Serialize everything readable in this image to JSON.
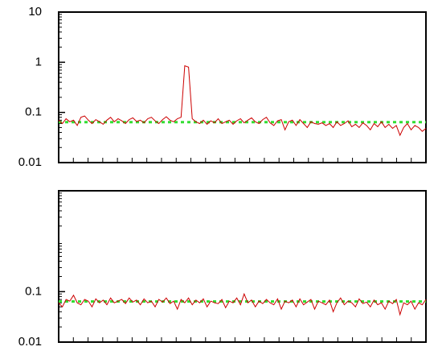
{
  "chart_data": [
    {
      "type": "line",
      "log": true,
      "ylim": [
        0.01,
        10
      ],
      "yticks": [
        0.01,
        0.1,
        1,
        10
      ],
      "series": [
        {
          "color": "#cc0000",
          "values": [
            0.07,
            0.06,
            0.075,
            0.065,
            0.07,
            0.055,
            0.08,
            0.085,
            0.07,
            0.06,
            0.072,
            0.065,
            0.058,
            0.07,
            0.08,
            0.065,
            0.075,
            0.068,
            0.06,
            0.072,
            0.078,
            0.066,
            0.07,
            0.062,
            0.075,
            0.08,
            0.068,
            0.06,
            0.072,
            0.082,
            0.07,
            0.065,
            0.075,
            0.08,
            0.85,
            0.8,
            0.075,
            0.065,
            0.06,
            0.07,
            0.058,
            0.068,
            0.062,
            0.075,
            0.06,
            0.065,
            0.07,
            0.058,
            0.068,
            0.075,
            0.062,
            0.07,
            0.078,
            0.065,
            0.06,
            0.072,
            0.08,
            0.062,
            0.055,
            0.068,
            0.072,
            0.045,
            0.065,
            0.07,
            0.055,
            0.072,
            0.06,
            0.05,
            0.065,
            0.06,
            0.058,
            0.062,
            0.055,
            0.06,
            0.05,
            0.065,
            0.055,
            0.06,
            0.068,
            0.052,
            0.058,
            0.05,
            0.062,
            0.055,
            0.045,
            0.06,
            0.052,
            0.065,
            0.05,
            0.058,
            0.048,
            0.055,
            0.035,
            0.05,
            0.06,
            0.045,
            0.055,
            0.05,
            0.042,
            0.048
          ]
        }
      ],
      "reference_line": {
        "value": 0.064,
        "color": "#33dd33"
      }
    },
    {
      "type": "line",
      "log": true,
      "ylim": [
        0.01,
        10
      ],
      "yticks": [
        0.01,
        0.1
      ],
      "series": [
        {
          "color": "#cc0000",
          "values": [
            0.06,
            0.05,
            0.07,
            0.065,
            0.085,
            0.06,
            0.055,
            0.07,
            0.065,
            0.05,
            0.072,
            0.06,
            0.068,
            0.055,
            0.075,
            0.06,
            0.065,
            0.07,
            0.058,
            0.075,
            0.062,
            0.068,
            0.055,
            0.072,
            0.06,
            0.065,
            0.05,
            0.07,
            0.062,
            0.075,
            0.058,
            0.065,
            0.045,
            0.07,
            0.06,
            0.075,
            0.055,
            0.068,
            0.06,
            0.072,
            0.05,
            0.065,
            0.06,
            0.058,
            0.07,
            0.048,
            0.065,
            0.06,
            0.075,
            0.055,
            0.09,
            0.06,
            0.068,
            0.05,
            0.065,
            0.058,
            0.07,
            0.06,
            0.055,
            0.072,
            0.045,
            0.065,
            0.06,
            0.068,
            0.05,
            0.072,
            0.055,
            0.062,
            0.07,
            0.045,
            0.065,
            0.06,
            0.055,
            0.068,
            0.04,
            0.06,
            0.075,
            0.055,
            0.065,
            0.06,
            0.05,
            0.072,
            0.058,
            0.062,
            0.05,
            0.068,
            0.055,
            0.06,
            0.045,
            0.065,
            0.058,
            0.07,
            0.035,
            0.06,
            0.055,
            0.065,
            0.045,
            0.06,
            0.055,
            0.07
          ]
        }
      ],
      "reference_line": {
        "value": 0.064,
        "color": "#33dd33"
      }
    }
  ]
}
